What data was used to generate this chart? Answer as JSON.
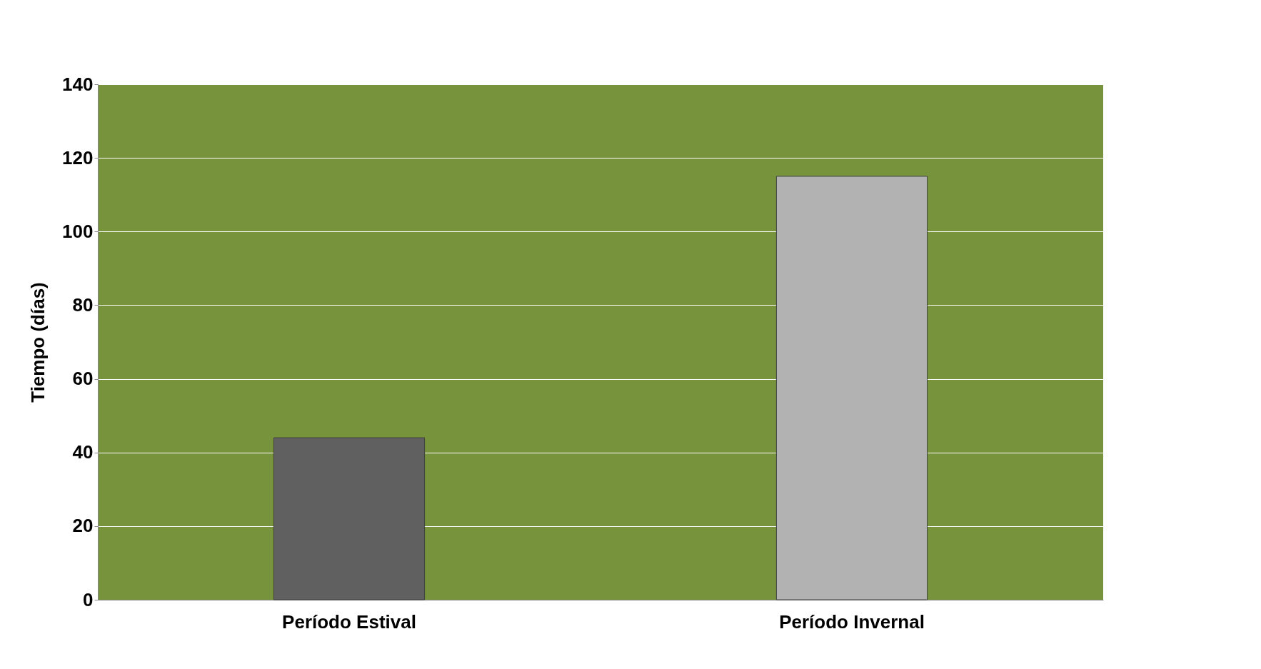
{
  "chart_data": {
    "type": "bar",
    "ylabel": "Tiempo (días)",
    "categories": [
      "Período  Estival",
      "Período Invernal"
    ],
    "values": [
      44,
      115
    ],
    "colors": [
      "#606060",
      "#b2b2b2"
    ],
    "ylim": [
      0,
      140
    ],
    "yticks": [
      0,
      20,
      40,
      60,
      80,
      100,
      120,
      140
    ],
    "grid": "y"
  }
}
